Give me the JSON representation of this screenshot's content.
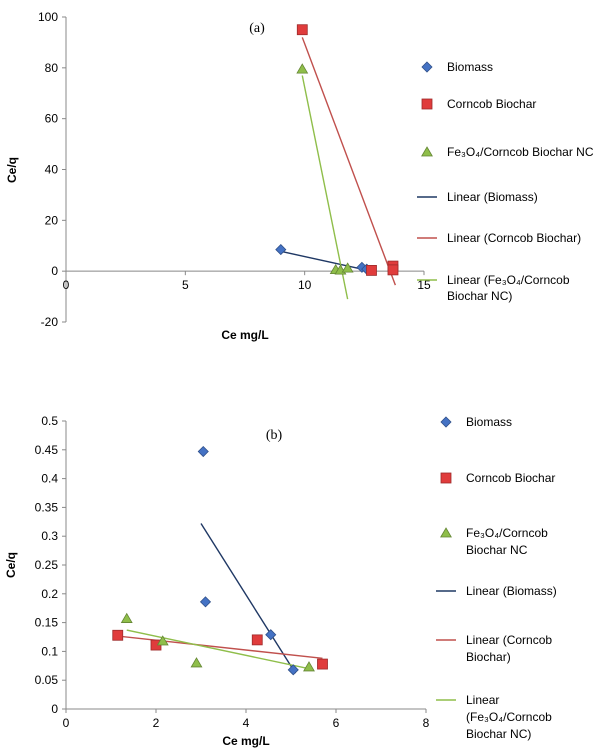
{
  "chart_data": [
    {
      "type": "scatter",
      "panel_label": "(a)",
      "xlabel": "Ce mg/L",
      "ylabel": "Ce/q",
      "xlim": [
        0,
        15
      ],
      "ylim": [
        -20,
        100
      ],
      "x_ticks": [
        0,
        5,
        10,
        15
      ],
      "y_ticks": [
        -20,
        0,
        20,
        40,
        60,
        80,
        100
      ],
      "legend_position": "right",
      "series": [
        {
          "name": "Biomass",
          "marker": "diamond",
          "color": "#4472c4",
          "x": [
            9.0,
            12.4,
            12.6
          ],
          "y": [
            8.5,
            1.5,
            0.8
          ]
        },
        {
          "name": "Corncob Biochar",
          "marker": "square",
          "color": "#e03c3c",
          "x": [
            9.9,
            12.8,
            13.7,
            13.7
          ],
          "y": [
            95,
            0.3,
            2.0,
            0.5
          ]
        },
        {
          "name": "Fe3O4/Corncob Biochar NC",
          "marker": "triangle",
          "color": "#8fbe4a",
          "x": [
            9.9,
            11.3,
            11.5,
            11.8
          ],
          "y": [
            79.5,
            0.6,
            0.4,
            1.2
          ]
        }
      ],
      "trendlines": [
        {
          "name": "Linear (Biomass)",
          "color": "#1f3864",
          "x": [
            9.0,
            12.7
          ],
          "y": [
            7.8,
            0.2
          ]
        },
        {
          "name": "Linear (Corncob Biochar)",
          "color": "#c0504d",
          "x": [
            9.9,
            13.8
          ],
          "y": [
            92,
            -5.5
          ]
        },
        {
          "name": "Linear (Fe3O4/Corncob Biochar NC)",
          "color": "#8fbe4a",
          "x": [
            9.9,
            11.8
          ],
          "y": [
            77,
            -11
          ]
        }
      ]
    },
    {
      "type": "scatter",
      "panel_label": "(b)",
      "xlabel": "Ce mg/L",
      "ylabel": "Ce/q",
      "xlim": [
        0,
        8
      ],
      "ylim": [
        0,
        0.5
      ],
      "x_ticks": [
        0,
        2,
        4,
        6,
        8
      ],
      "y_ticks": [
        0,
        0.05,
        0.1,
        0.15,
        0.2,
        0.25,
        0.3,
        0.35,
        0.4,
        0.45,
        0.5
      ],
      "legend_position": "right",
      "series": [
        {
          "name": "Biomass",
          "marker": "diamond",
          "color": "#4472c4",
          "x": [
            3.05,
            3.1,
            4.55,
            5.05
          ],
          "y": [
            0.447,
            0.186,
            0.129,
            0.068
          ]
        },
        {
          "name": "Corncob Biochar",
          "marker": "square",
          "color": "#e03c3c",
          "x": [
            1.15,
            2.0,
            4.25,
            5.7
          ],
          "y": [
            0.128,
            0.111,
            0.12,
            0.078
          ]
        },
        {
          "name": "Fe3O4/Corncob Biochar NC",
          "marker": "triangle",
          "color": "#8fbe4a",
          "x": [
            1.35,
            2.15,
            2.9,
            5.4
          ],
          "y": [
            0.157,
            0.118,
            0.08,
            0.073
          ]
        }
      ],
      "trendlines": [
        {
          "name": "Linear (Biomass)",
          "color": "#1f3864",
          "x": [
            3.0,
            5.1
          ],
          "y": [
            0.322,
            0.062
          ]
        },
        {
          "name": "Linear (Corncob Biochar)",
          "color": "#c0504d",
          "x": [
            1.1,
            5.7
          ],
          "y": [
            0.127,
            0.088
          ]
        },
        {
          "name": "Linear (Fe3O4/Corncob Biochar NC)",
          "color": "#8fbe4a",
          "x": [
            1.35,
            5.4
          ],
          "y": [
            0.137,
            0.07
          ]
        }
      ]
    }
  ],
  "legends": [
    {
      "items": [
        {
          "marker": "diamond",
          "color": "#4472c4",
          "lines": [
            "Biomass"
          ]
        },
        {
          "marker": "square",
          "color": "#e03c3c",
          "lines": [
            "Corncob Biochar"
          ]
        },
        {
          "marker": "triangle",
          "color": "#8fbe4a",
          "lines": [
            "Fe₃O₄/Corncob Biochar NC"
          ]
        },
        {
          "marker": "line",
          "color": "#1f3864",
          "lines": [
            "Linear (Biomass)"
          ]
        },
        {
          "marker": "line",
          "color": "#c0504d",
          "lines": [
            "Linear (Corncob Biochar)"
          ]
        },
        {
          "marker": "line",
          "color": "#8fbe4a",
          "lines": [
            "Linear (Fe₃O₄/Corncob",
            "Biochar NC)"
          ]
        }
      ]
    },
    {
      "items": [
        {
          "marker": "diamond",
          "color": "#4472c4",
          "lines": [
            "Biomass"
          ]
        },
        {
          "marker": "square",
          "color": "#e03c3c",
          "lines": [
            "Corncob Biochar"
          ]
        },
        {
          "marker": "triangle",
          "color": "#8fbe4a",
          "lines": [
            "Fe₃O₄/Corncob",
            "Biochar NC"
          ]
        },
        {
          "marker": "line",
          "color": "#1f3864",
          "lines": [
            "Linear (Biomass)"
          ]
        },
        {
          "marker": "line",
          "color": "#c0504d",
          "lines": [
            "Linear (Corncob",
            "Biochar)"
          ]
        },
        {
          "marker": "line",
          "color": "#8fbe4a",
          "lines": [
            "Linear",
            "(Fe₃O₄/Corncob",
            "Biochar NC)"
          ]
        }
      ]
    }
  ]
}
